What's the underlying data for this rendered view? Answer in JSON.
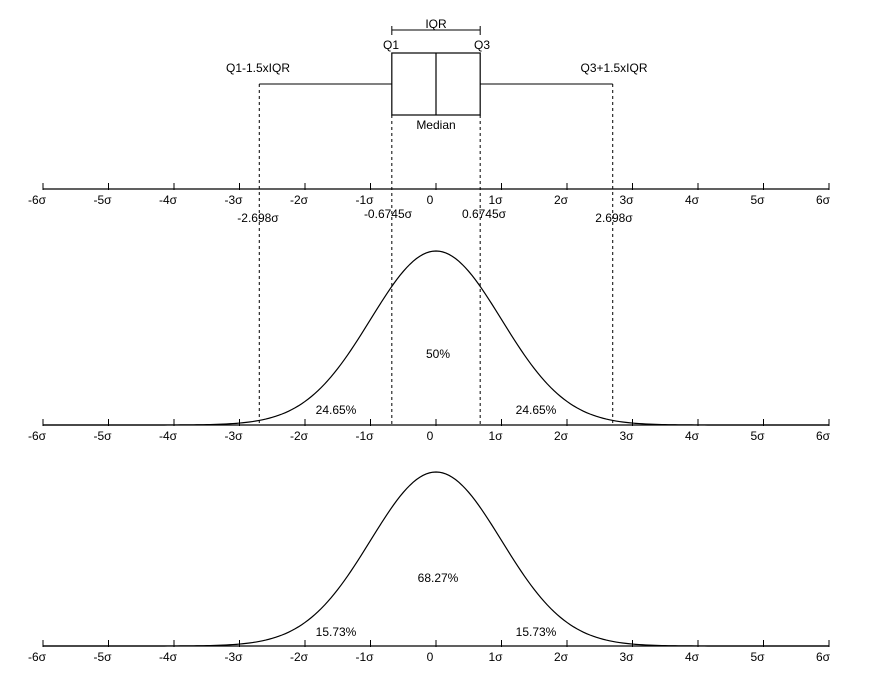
{
  "tick_labels": [
    "-6σ",
    "-5σ",
    "-4σ",
    "-3σ",
    "-2σ",
    "-1σ",
    "0",
    "1σ",
    "2σ",
    "3σ",
    "4σ",
    "5σ",
    "6σ"
  ],
  "boxplot": {
    "iqr_label": "IQR",
    "q1_label": "Q1",
    "q3_label": "Q3",
    "median_label": "Median",
    "lower_whisker_label": "Q1-1.5xIQR",
    "upper_whisker_label": "Q3+1.5xIQR",
    "q1_value": -0.6745,
    "q3_value": 0.6745,
    "median_value": 0,
    "lower_whisker_value": -2.698,
    "upper_whisker_value": 2.698
  },
  "axis1_values": {
    "lower_whisker": "-2.698σ",
    "q1": "-0.6745σ",
    "q3": "0.6745σ",
    "upper_whisker": "2.698σ"
  },
  "curve1": {
    "center_pct": "50%",
    "left_pct": "24.65%",
    "right_pct": "24.65%"
  },
  "curve2": {
    "center_pct": "68.27%",
    "left_pct": "15.73%",
    "right_pct": "15.73%"
  },
  "colors": {
    "line": "#000000",
    "background": "#ffffff"
  }
}
